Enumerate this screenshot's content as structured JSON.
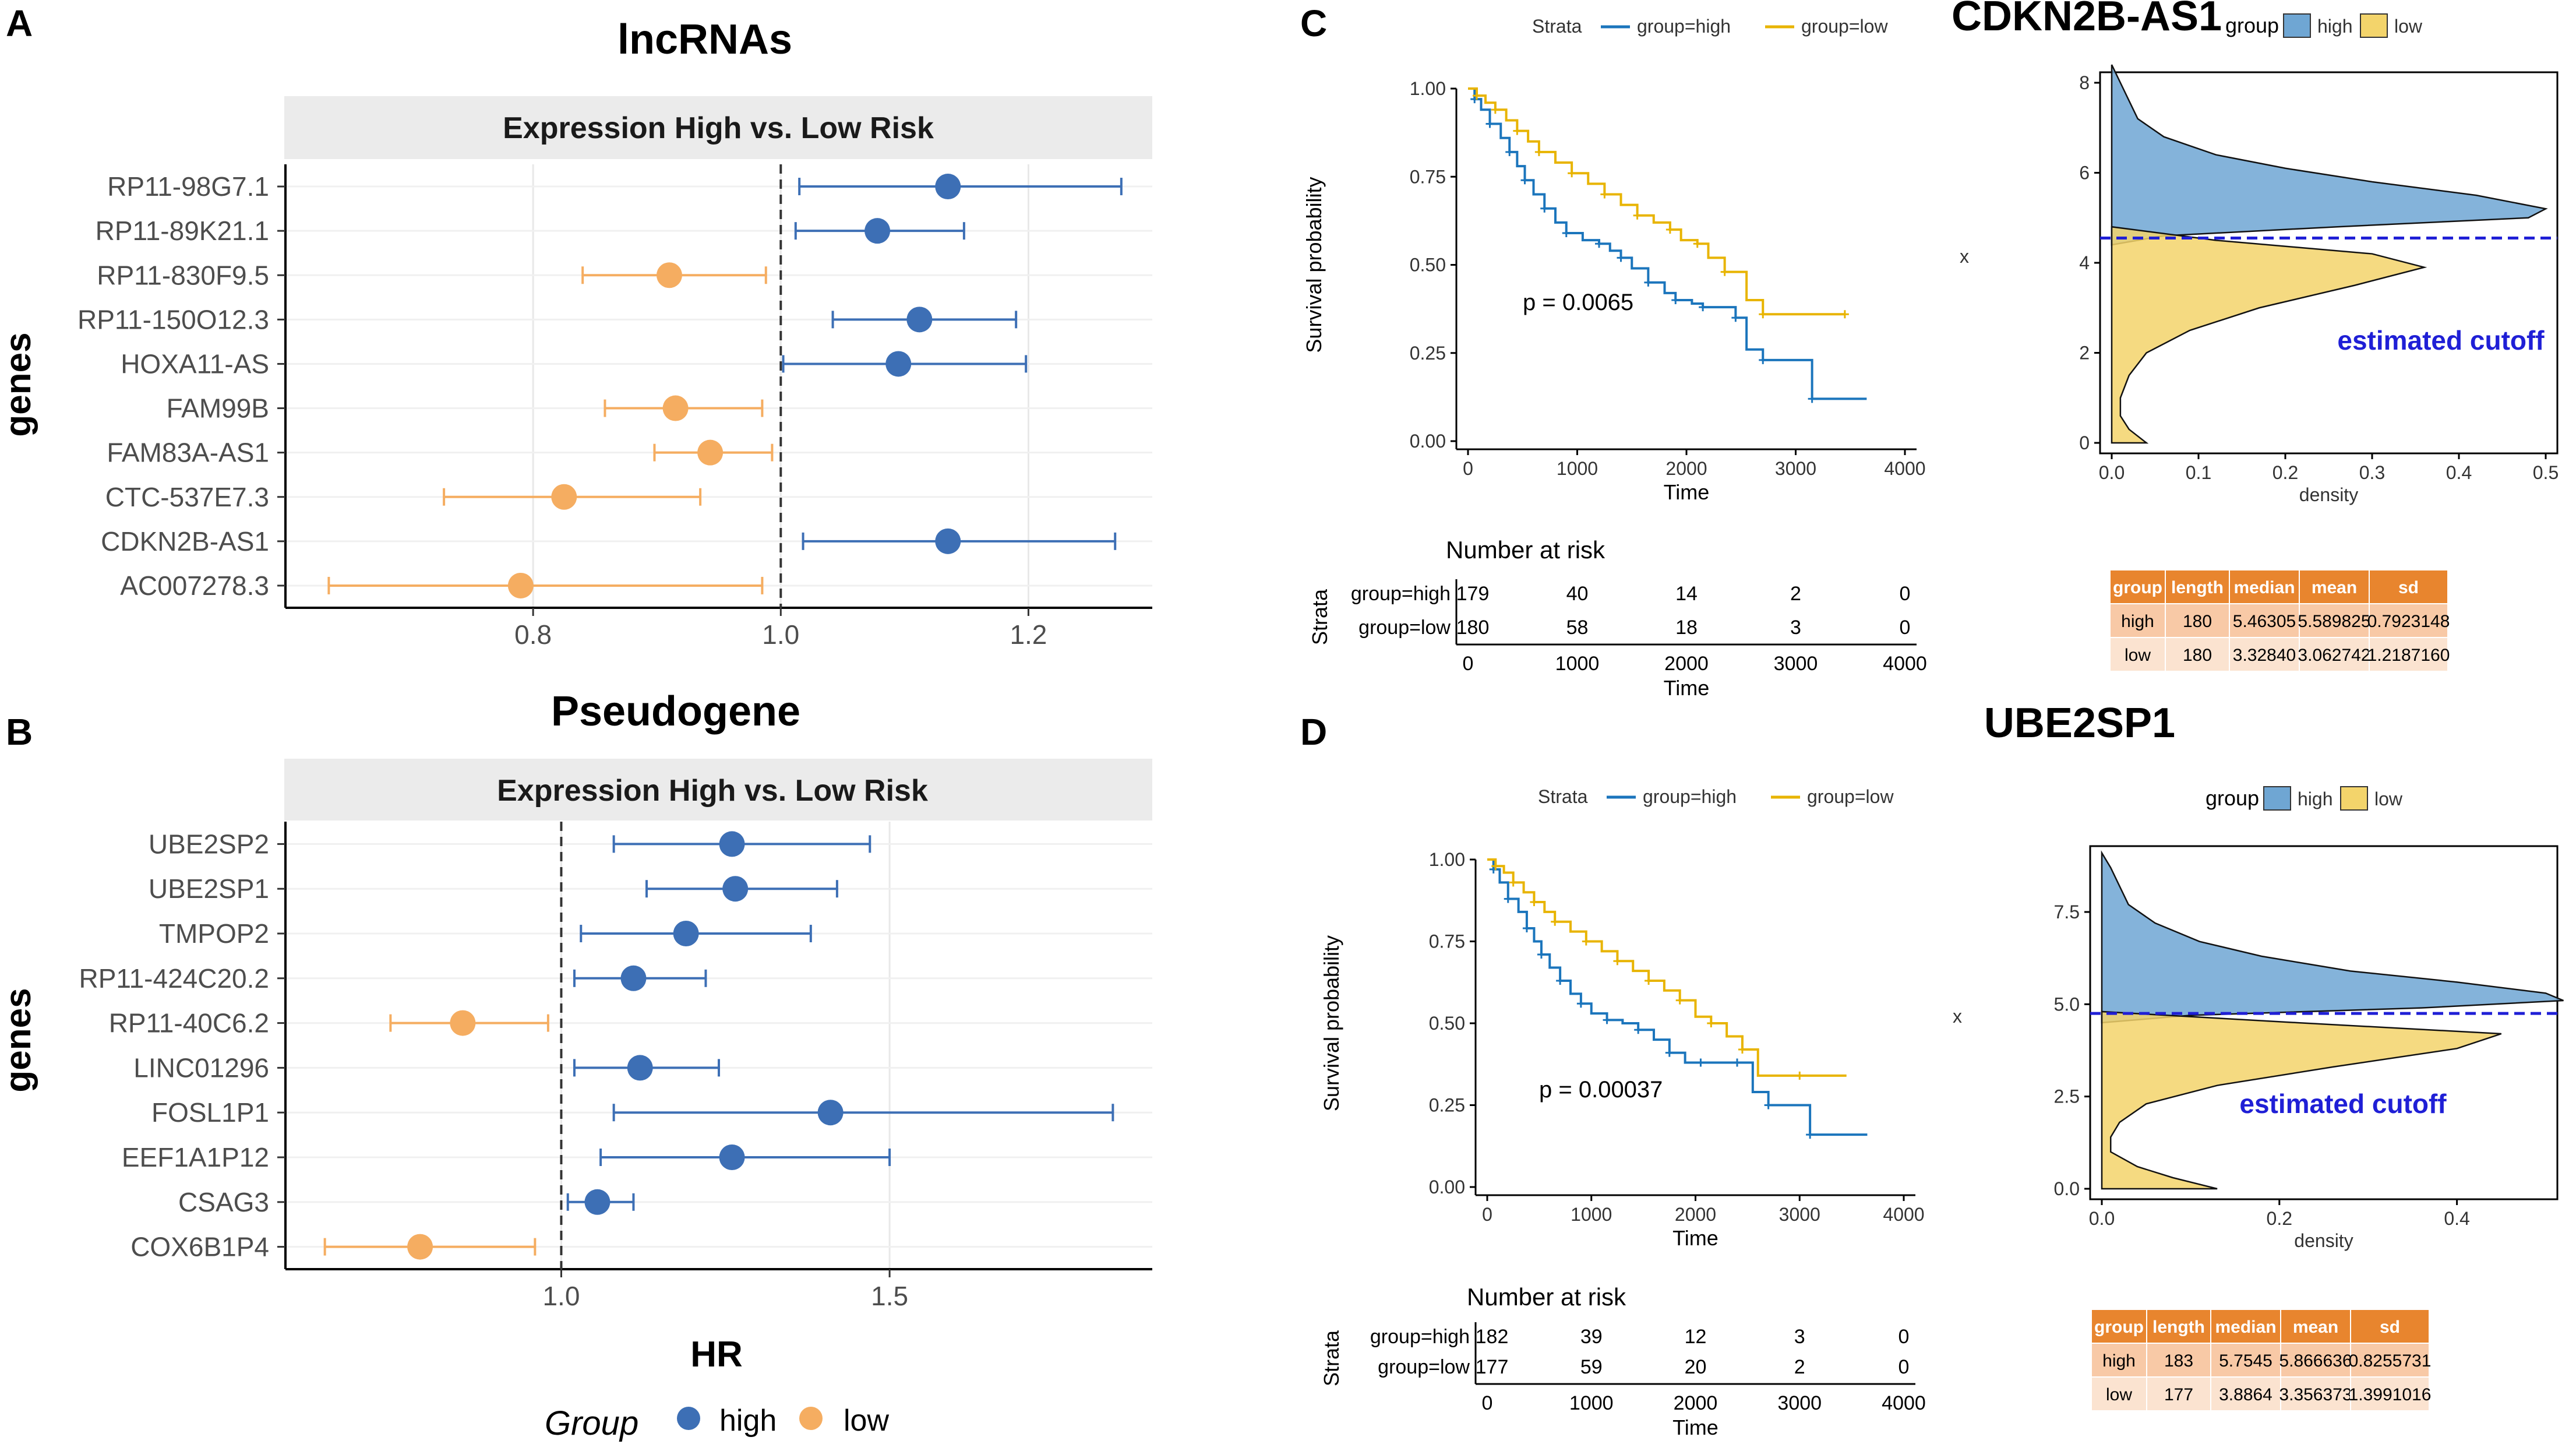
{
  "colors": {
    "high": "#3d6fb5",
    "low": "#f5ad61",
    "km_high": "#1b75bc",
    "km_low": "#e8b400",
    "dens_high": "#6fa6d3",
    "dens_low": "#f3d46b",
    "cutoff": "#1f1fd6",
    "tbl_head": "#e8852e",
    "tbl_row1": "#f8c9a6",
    "tbl_row2": "#fbe3d0",
    "strip": "#ebebeb"
  },
  "panels": {
    "a": "A",
    "b": "B",
    "c": "C",
    "d": "D"
  },
  "chart_data": [
    {
      "id": "forest_a",
      "type": "scatter",
      "title": "lncRNAs",
      "strip": "Expression High vs. Low Risk",
      "xlabel": "",
      "ylabel": "genes",
      "xlim": [
        0.6,
        1.3
      ],
      "xticks": [
        0.8,
        1.0,
        1.2
      ],
      "xtick_labels": [
        "0.8",
        "1.0",
        "1.2"
      ],
      "ref": 1.0,
      "rows": [
        {
          "gene": "RP11-98G7.1",
          "hr": 1.135,
          "lo": 1.015,
          "hi": 1.275,
          "group": "high"
        },
        {
          "gene": "RP11-89K21.1",
          "hr": 1.078,
          "lo": 1.012,
          "hi": 1.148,
          "group": "high"
        },
        {
          "gene": "RP11-830F9.5",
          "hr": 0.91,
          "lo": 0.84,
          "hi": 0.988,
          "group": "low"
        },
        {
          "gene": "RP11-150O12.3",
          "hr": 1.112,
          "lo": 1.042,
          "hi": 1.19,
          "group": "high"
        },
        {
          "gene": "HOXA11-AS",
          "hr": 1.095,
          "lo": 1.002,
          "hi": 1.198,
          "group": "high"
        },
        {
          "gene": "FAM99B",
          "hr": 0.915,
          "lo": 0.858,
          "hi": 0.985,
          "group": "low"
        },
        {
          "gene": "FAM83A-AS1",
          "hr": 0.943,
          "lo": 0.898,
          "hi": 0.993,
          "group": "low"
        },
        {
          "gene": "CTC-537E7.3",
          "hr": 0.825,
          "lo": 0.728,
          "hi": 0.935,
          "group": "low"
        },
        {
          "gene": "CDKN2B-AS1",
          "hr": 1.135,
          "lo": 1.018,
          "hi": 1.27,
          "group": "high"
        },
        {
          "gene": "AC007278.3",
          "hr": 0.79,
          "lo": 0.635,
          "hi": 0.985,
          "group": "low"
        }
      ]
    },
    {
      "id": "forest_b",
      "type": "scatter",
      "title": "Pseudogene",
      "strip": "Expression High vs. Low Risk",
      "xlabel": "HR",
      "ylabel": "genes",
      "xlim": [
        0.58,
        1.9
      ],
      "xticks": [
        1.0,
        1.5
      ],
      "xtick_labels": [
        "1.0",
        "1.5"
      ],
      "ref": 1.0,
      "rows": [
        {
          "gene": "UBE2SP2",
          "hr": 1.26,
          "lo": 1.08,
          "hi": 1.47,
          "group": "high"
        },
        {
          "gene": "UBE2SP1",
          "hr": 1.265,
          "lo": 1.13,
          "hi": 1.42,
          "group": "high"
        },
        {
          "gene": "TMPOP2",
          "hr": 1.19,
          "lo": 1.03,
          "hi": 1.38,
          "group": "high"
        },
        {
          "gene": "RP11-424C20.2",
          "hr": 1.11,
          "lo": 1.02,
          "hi": 1.22,
          "group": "high"
        },
        {
          "gene": "RP11-40C6.2",
          "hr": 0.85,
          "lo": 0.74,
          "hi": 0.98,
          "group": "low"
        },
        {
          "gene": "LINC01296",
          "hr": 1.12,
          "lo": 1.02,
          "hi": 1.24,
          "group": "high"
        },
        {
          "gene": "FOSL1P1",
          "hr": 1.41,
          "lo": 1.08,
          "hi": 1.84,
          "group": "high"
        },
        {
          "gene": "EEF1A1P12",
          "hr": 1.26,
          "lo": 1.06,
          "hi": 1.5,
          "group": "high"
        },
        {
          "gene": "CSAG3",
          "hr": 1.055,
          "lo": 1.01,
          "hi": 1.11,
          "group": "high"
        },
        {
          "gene": "COX6B1P4",
          "hr": 0.785,
          "lo": 0.64,
          "hi": 0.96,
          "group": "low"
        }
      ]
    },
    {
      "id": "km_c",
      "type": "line",
      "title": "",
      "xlabel": "Time",
      "ylabel": "Survival probability",
      "xlim": [
        0,
        4000
      ],
      "ylim": [
        0,
        1
      ],
      "xticks": [
        "0",
        "1000",
        "2000",
        "3000",
        "4000"
      ],
      "yticks": [
        "0.00",
        "0.25",
        "0.50",
        "0.75",
        "1.00"
      ],
      "legend": {
        "title": "Strata",
        "high": "group=high",
        "low": "group=low"
      },
      "pvalue": "p = 0.0065",
      "series": [
        {
          "name": "group=high",
          "x": [
            0,
            60,
            120,
            200,
            300,
            380,
            450,
            520,
            600,
            700,
            800,
            900,
            1050,
            1200,
            1300,
            1400,
            1500,
            1650,
            1800,
            1900,
            2050,
            2150,
            2300,
            2450,
            2550,
            2700,
            2900,
            3150,
            3650
          ],
          "y": [
            1.0,
            0.97,
            0.94,
            0.9,
            0.86,
            0.82,
            0.78,
            0.74,
            0.7,
            0.66,
            0.62,
            0.59,
            0.57,
            0.56,
            0.54,
            0.52,
            0.49,
            0.45,
            0.42,
            0.4,
            0.39,
            0.38,
            0.38,
            0.35,
            0.26,
            0.23,
            0.23,
            0.12,
            0.12
          ]
        },
        {
          "name": "group=low",
          "x": [
            0,
            80,
            160,
            250,
            350,
            450,
            550,
            650,
            800,
            950,
            1100,
            1250,
            1400,
            1550,
            1700,
            1850,
            1950,
            2100,
            2200,
            2350,
            2550,
            2700,
            3000,
            3450
          ],
          "y": [
            1.0,
            0.98,
            0.96,
            0.94,
            0.91,
            0.88,
            0.85,
            0.82,
            0.79,
            0.76,
            0.73,
            0.7,
            0.67,
            0.64,
            0.62,
            0.6,
            0.57,
            0.56,
            0.52,
            0.48,
            0.4,
            0.36,
            0.36,
            0.36
          ]
        }
      ],
      "risk": {
        "title": "Number at risk",
        "ylabel": "Strata",
        "times": [
          "0",
          "1000",
          "2000",
          "3000",
          "4000"
        ],
        "rows": [
          {
            "label": "group=high",
            "values": [
              "179",
              "40",
              "14",
              "2",
              "0"
            ]
          },
          {
            "label": "group=low",
            "values": [
              "180",
              "58",
              "18",
              "3",
              "0"
            ]
          }
        ]
      }
    },
    {
      "id": "dens_c",
      "type": "area",
      "title": "CDKN2B-AS1",
      "xlabel": "density",
      "ylabel": "x",
      "xlim": [
        0,
        0.5
      ],
      "ylim": [
        0,
        8
      ],
      "xticks": [
        "0.0",
        "0.1",
        "0.2",
        "0.3",
        "0.4",
        "0.5"
      ],
      "yticks": [
        "0",
        "2",
        "4",
        "6",
        "8"
      ],
      "cutoff": 4.55,
      "cutoff_label": "estimated cutoff",
      "legend": {
        "title": "group",
        "high": "high",
        "low": "low"
      },
      "series": [
        {
          "name": "high",
          "y": [
            4.4,
            4.6,
            4.8,
            5.0,
            5.2,
            5.5,
            5.8,
            6.1,
            6.4,
            6.8,
            7.2,
            7.6,
            8.0,
            8.4
          ],
          "density": [
            0.0,
            0.06,
            0.26,
            0.48,
            0.5,
            0.42,
            0.3,
            0.2,
            0.12,
            0.06,
            0.03,
            0.02,
            0.01,
            0.0
          ]
        },
        {
          "name": "low",
          "y": [
            0.0,
            0.3,
            0.6,
            1.0,
            1.5,
            2.0,
            2.5,
            3.0,
            3.5,
            3.9,
            4.2,
            4.5,
            4.8
          ],
          "density": [
            0.04,
            0.02,
            0.01,
            0.01,
            0.02,
            0.04,
            0.09,
            0.17,
            0.28,
            0.36,
            0.3,
            0.12,
            0.0
          ]
        }
      ],
      "table": {
        "columns": [
          "group",
          "length",
          "median",
          "mean",
          "sd"
        ],
        "rows": [
          [
            "high",
            "180",
            "5.46305",
            "5.589825",
            "0.7923148"
          ],
          [
            "low",
            "180",
            "3.32840",
            "3.062742",
            "1.2187160"
          ]
        ]
      }
    },
    {
      "id": "km_d",
      "type": "line",
      "title": "",
      "xlabel": "Time",
      "ylabel": "Survival probability",
      "xlim": [
        0,
        4000
      ],
      "ylim": [
        0,
        1
      ],
      "xticks": [
        "0",
        "1000",
        "2000",
        "3000",
        "4000"
      ],
      "yticks": [
        "0.00",
        "0.25",
        "0.50",
        "0.75",
        "1.00"
      ],
      "legend": {
        "title": "Strata",
        "high": "group=high",
        "low": "group=low"
      },
      "pvalue": "p = 0.00037",
      "series": [
        {
          "name": "group=high",
          "x": [
            0,
            60,
            120,
            200,
            300,
            380,
            450,
            520,
            600,
            700,
            800,
            900,
            1000,
            1150,
            1300,
            1450,
            1600,
            1750,
            1900,
            2050,
            2200,
            2400,
            2550,
            2700,
            2900,
            3100,
            3650
          ],
          "y": [
            1.0,
            0.97,
            0.93,
            0.88,
            0.84,
            0.79,
            0.75,
            0.71,
            0.67,
            0.63,
            0.59,
            0.56,
            0.53,
            0.51,
            0.5,
            0.48,
            0.45,
            0.41,
            0.38,
            0.38,
            0.38,
            0.38,
            0.29,
            0.25,
            0.25,
            0.16,
            0.16
          ]
        },
        {
          "name": "group=low",
          "x": [
            0,
            80,
            160,
            250,
            350,
            450,
            550,
            650,
            800,
            950,
            1100,
            1250,
            1400,
            1550,
            1700,
            1850,
            2000,
            2150,
            2300,
            2450,
            2600,
            3000,
            3450
          ],
          "y": [
            1.0,
            0.98,
            0.96,
            0.93,
            0.9,
            0.87,
            0.84,
            0.81,
            0.78,
            0.75,
            0.72,
            0.69,
            0.66,
            0.63,
            0.6,
            0.57,
            0.52,
            0.5,
            0.46,
            0.42,
            0.34,
            0.34,
            0.34
          ]
        }
      ],
      "risk": {
        "title": "Number at risk",
        "ylabel": "Strata",
        "times": [
          "0",
          "1000",
          "2000",
          "3000",
          "4000"
        ],
        "rows": [
          {
            "label": "group=high",
            "values": [
              "182",
              "39",
              "12",
              "3",
              "0"
            ]
          },
          {
            "label": "group=low",
            "values": [
              "177",
              "59",
              "20",
              "2",
              "0"
            ]
          }
        ]
      }
    },
    {
      "id": "dens_d",
      "type": "area",
      "title": "UBE2SP1",
      "xlabel": "density",
      "ylabel": "x",
      "xlim": [
        0,
        0.5
      ],
      "ylim": [
        0,
        9
      ],
      "xticks": [
        "0.0",
        "0.2",
        "0.4"
      ],
      "yticks": [
        "0.0",
        "2.5",
        "5.0",
        "7.5"
      ],
      "cutoff": 4.75,
      "cutoff_label": "estimated cutoff",
      "legend": {
        "title": "group",
        "high": "high",
        "low": "low"
      },
      "series": [
        {
          "name": "high",
          "y": [
            4.5,
            4.7,
            4.9,
            5.1,
            5.3,
            5.6,
            5.9,
            6.3,
            6.7,
            7.2,
            7.7,
            8.2,
            8.7,
            9.1
          ],
          "density": [
            0.0,
            0.1,
            0.36,
            0.52,
            0.5,
            0.4,
            0.28,
            0.18,
            0.11,
            0.06,
            0.03,
            0.02,
            0.01,
            0.0
          ]
        },
        {
          "name": "low",
          "y": [
            0.0,
            0.3,
            0.6,
            1.0,
            1.4,
            1.8,
            2.3,
            2.8,
            3.3,
            3.8,
            4.2,
            4.5,
            4.8
          ],
          "density": [
            0.13,
            0.08,
            0.04,
            0.01,
            0.01,
            0.02,
            0.05,
            0.13,
            0.26,
            0.4,
            0.45,
            0.22,
            0.0
          ]
        }
      ],
      "table": {
        "columns": [
          "group",
          "length",
          "median",
          "mean",
          "sd"
        ],
        "rows": [
          [
            "high",
            "183",
            "5.7545",
            "5.866636",
            "0.8255731"
          ],
          [
            "low",
            "177",
            "3.8864",
            "3.356373",
            "1.3991016"
          ]
        ]
      }
    }
  ],
  "legend_bottom": {
    "title": "Group",
    "high": "high",
    "low": "low"
  }
}
